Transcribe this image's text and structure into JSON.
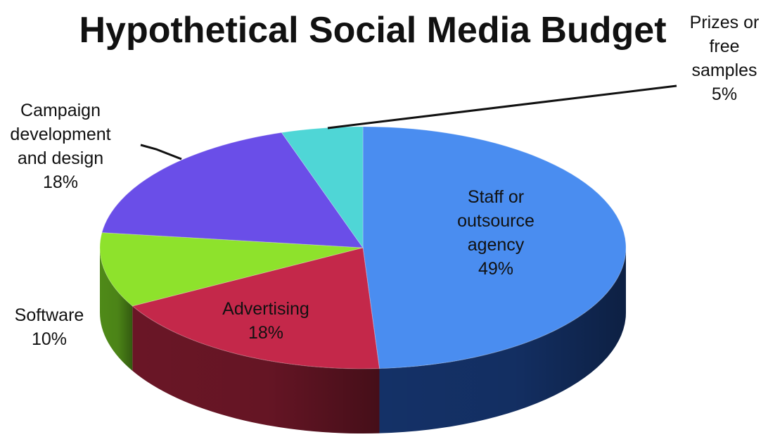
{
  "chart_data": {
    "type": "pie",
    "title": "Hypothetical Social Media Budget",
    "slices": [
      {
        "lines": [
          "Staff or",
          "outsource",
          "agency"
        ],
        "pct_label": "49%",
        "value": 49,
        "color": "#4a8df0",
        "side_color": "#143167"
      },
      {
        "lines": [
          "Advertising"
        ],
        "pct_label": "18%",
        "value": 18,
        "color": "#c4284a",
        "side_color": "#6a1626"
      },
      {
        "lines": [
          "Software"
        ],
        "pct_label": "10%",
        "value": 10,
        "color": "#8ee22c",
        "side_color": "#4f8a18"
      },
      {
        "lines": [
          "Campaign",
          "development",
          "and design"
        ],
        "pct_label": "18%",
        "value": 18,
        "color": "#6a4ee8",
        "side_color": "#3a2a8a"
      },
      {
        "lines": [
          "Prizes or",
          "free",
          "samples"
        ],
        "pct_label": "5%",
        "value": 5,
        "color": "#4fd6d6",
        "side_color": "#2a8a8a"
      }
    ]
  }
}
